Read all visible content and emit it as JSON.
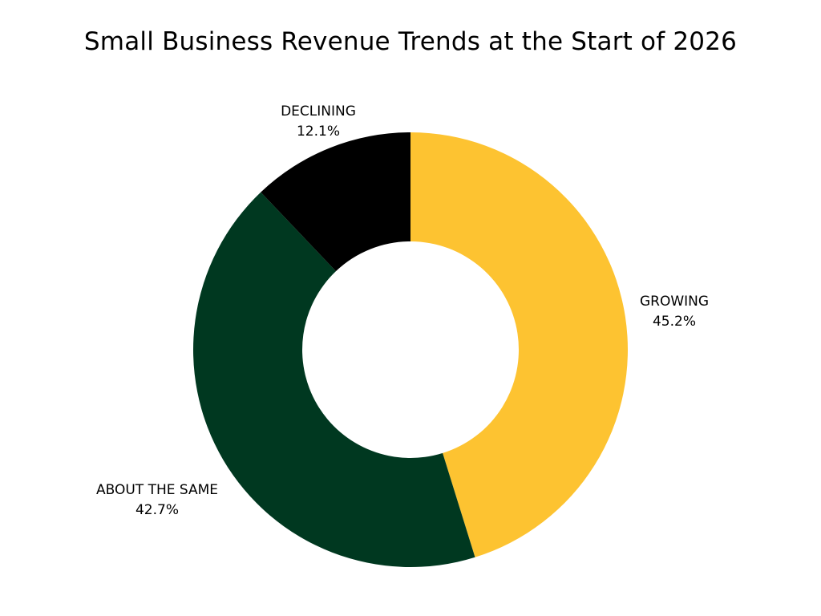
{
  "chart_data": {
    "type": "pie",
    "variant": "donut",
    "title": "Small Business Revenue Trends at the Start of 2026",
    "categories": [
      "GROWING",
      "ABOUT THE SAME",
      "DECLINING"
    ],
    "values": [
      45.2,
      42.7,
      12.1
    ],
    "value_labels": [
      "45.2%",
      "42.7%",
      "12.1%"
    ],
    "unit": "%",
    "colors": [
      "#FDC331",
      "#003820",
      "#000000"
    ],
    "start_angle": "12 o'clock",
    "direction": "clockwise",
    "legend": "none",
    "labels_position": "outside"
  }
}
